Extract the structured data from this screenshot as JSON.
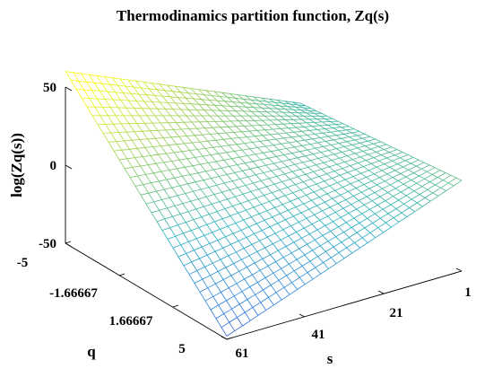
{
  "chart_data": {
    "type": "surface",
    "title": "Thermodinamics partition function, Zq(s)",
    "xlabel": "s",
    "ylabel": "q",
    "zlabel": "log(Zq(s))",
    "xlim": [
      1,
      61
    ],
    "ylim": [
      -5,
      5
    ],
    "zlim": [
      -50,
      50
    ],
    "xticks": [
      "1",
      "21",
      "41",
      "61"
    ],
    "yticks": [
      "-5",
      "-1.66667",
      "1.66667",
      "5"
    ],
    "zticks": [
      "50",
      "0",
      "-50"
    ],
    "colormap": "parula",
    "style": "mesh",
    "grid": false,
    "s_range": [
      1,
      61
    ],
    "q_range": [
      -5,
      5
    ],
    "log_z_corner_values": {
      "s1_q-5": -4,
      "s61_q-5": 60,
      "s1_q5": 8,
      "s61_q5": -48
    }
  }
}
